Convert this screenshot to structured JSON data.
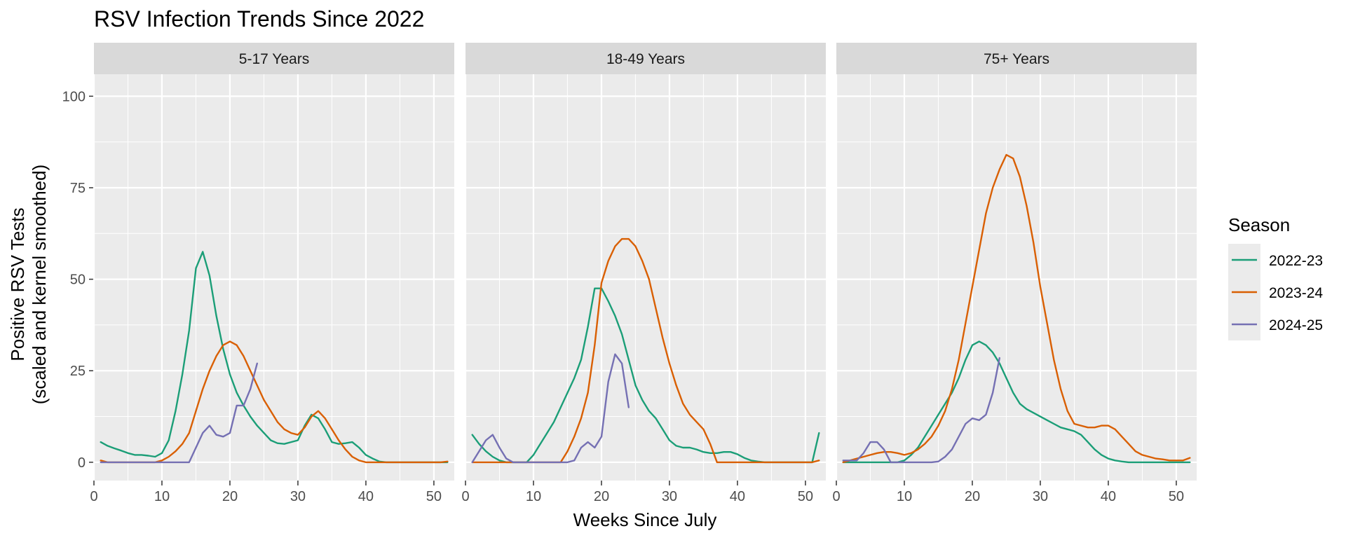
{
  "chart_data": {
    "type": "line",
    "title": "RSV Infection Trends Since 2022",
    "xlabel": "Weeks Since July",
    "ylabel_lines": [
      "Positive RSV Tests",
      "(scaled and kernel smoothed)"
    ],
    "xlim": [
      0,
      53
    ],
    "ylim": [
      -5,
      106
    ],
    "x_ticks": [
      0,
      10,
      20,
      30,
      40,
      50
    ],
    "y_ticks": [
      0,
      25,
      50,
      75,
      100
    ],
    "grid": true,
    "legend": {
      "title": "Season",
      "position": "right",
      "entries": [
        "2022-23",
        "2023-24",
        "2024-25"
      ]
    },
    "series_colors": {
      "2022-23": "#1b9e77",
      "2023-24": "#d95f02",
      "2024-25": "#7570b3"
    },
    "panels": [
      {
        "label": "5-17 Years",
        "series": [
          {
            "name": "2022-23",
            "x": [
              1,
              2,
              3,
              4,
              5,
              6,
              7,
              8,
              9,
              10,
              11,
              12,
              13,
              14,
              15,
              16,
              17,
              18,
              19,
              20,
              21,
              22,
              23,
              24,
              25,
              26,
              27,
              28,
              29,
              30,
              31,
              32,
              33,
              34,
              35,
              36,
              37,
              38,
              39,
              40,
              41,
              42,
              43,
              44,
              45,
              46,
              47,
              48,
              49,
              50,
              51,
              52
            ],
            "y": [
              5.5,
              4.5,
              3.8,
              3.2,
              2.5,
              2,
              2,
              1.8,
              1.5,
              2.5,
              6,
              14,
              24,
              36,
              53,
              57.5,
              51,
              40,
              31,
              24,
              19,
              15.5,
              12.5,
              10,
              8,
              6,
              5.2,
              5,
              5.5,
              6,
              10,
              13,
              12,
              9,
              5.5,
              5,
              5.2,
              5.5,
              4,
              2,
              1,
              0.2,
              0,
              0,
              0,
              0,
              0,
              0,
              0,
              0,
              0,
              0
            ]
          },
          {
            "name": "2023-24",
            "x": [
              1,
              2,
              3,
              4,
              5,
              6,
              7,
              8,
              9,
              10,
              11,
              12,
              13,
              14,
              15,
              16,
              17,
              18,
              19,
              20,
              21,
              22,
              23,
              24,
              25,
              26,
              27,
              28,
              29,
              30,
              31,
              32,
              33,
              34,
              35,
              36,
              37,
              38,
              39,
              40,
              41,
              42,
              43,
              44,
              45,
              46,
              47,
              48,
              49,
              50,
              51,
              52
            ],
            "y": [
              0.5,
              0,
              0,
              0,
              0,
              0,
              0,
              0,
              0,
              0.5,
              1.5,
              3,
              5,
              8,
              14,
              20,
              25,
              29,
              32,
              33,
              32,
              29,
              25,
              21,
              17,
              14,
              11,
              9,
              8,
              7.5,
              9.5,
              12.5,
              14,
              12,
              9,
              6,
              3.5,
              1.5,
              0.5,
              0,
              0,
              0,
              0,
              0,
              0,
              0,
              0,
              0,
              0,
              0,
              0,
              0.2
            ]
          },
          {
            "name": "2024-25",
            "x": [
              1,
              2,
              3,
              4,
              5,
              6,
              7,
              8,
              9,
              10,
              11,
              12,
              13,
              14,
              15,
              16,
              17,
              18,
              19,
              20,
              21,
              22,
              23,
              24
            ],
            "y": [
              0,
              0,
              0,
              0,
              0,
              0,
              0,
              0,
              0,
              0,
              0,
              0,
              0,
              0,
              4,
              8,
              10,
              7.5,
              7,
              8,
              15.5,
              15.5,
              20,
              27
            ]
          }
        ]
      },
      {
        "label": "18-49 Years",
        "series": [
          {
            "name": "2022-23",
            "x": [
              1,
              2,
              3,
              4,
              5,
              6,
              7,
              8,
              9,
              10,
              11,
              12,
              13,
              14,
              15,
              16,
              17,
              18,
              19,
              20,
              21,
              22,
              23,
              24,
              25,
              26,
              27,
              28,
              29,
              30,
              31,
              32,
              33,
              34,
              35,
              36,
              37,
              38,
              39,
              40,
              41,
              42,
              43,
              44,
              45,
              46,
              47,
              48,
              49,
              50,
              51,
              52
            ],
            "y": [
              7.5,
              5,
              3,
              1.5,
              0.5,
              0,
              0,
              0,
              0,
              2,
              5,
              8,
              11,
              15,
              19,
              23,
              28,
              37,
              47.5,
              47.5,
              44,
              40,
              35,
              28,
              21,
              17,
              14,
              12,
              9,
              6,
              4.5,
              4,
              4,
              3.5,
              2.8,
              2.5,
              2.5,
              2.8,
              2.8,
              2.2,
              1.2,
              0.5,
              0.2,
              0,
              0,
              0,
              0,
              0,
              0,
              0,
              0,
              8
            ]
          },
          {
            "name": "2023-24",
            "x": [
              1,
              2,
              3,
              4,
              5,
              6,
              7,
              8,
              9,
              10,
              11,
              12,
              13,
              14,
              15,
              16,
              17,
              18,
              19,
              20,
              21,
              22,
              23,
              24,
              25,
              26,
              27,
              28,
              29,
              30,
              31,
              32,
              33,
              34,
              35,
              36,
              37,
              38,
              39,
              40,
              41,
              42,
              43,
              44,
              45,
              46,
              47,
              48,
              49,
              50,
              51,
              52
            ],
            "y": [
              0,
              0,
              0,
              0,
              0,
              0,
              0,
              0,
              0,
              0,
              0,
              0,
              0,
              0,
              3,
              7,
              12,
              19,
              32,
              49,
              55,
              59,
              61,
              61,
              59,
              55,
              50,
              42,
              34,
              27,
              21,
              16,
              13,
              11,
              9,
              5,
              0,
              0,
              0,
              0,
              0,
              0,
              0,
              0,
              0,
              0,
              0,
              0,
              0,
              0,
              0,
              0.5
            ]
          },
          {
            "name": "2024-25",
            "x": [
              1,
              2,
              3,
              4,
              5,
              6,
              7,
              8,
              9,
              10,
              11,
              12,
              13,
              14,
              15,
              16,
              17,
              18,
              19,
              20,
              21,
              22,
              23,
              24
            ],
            "y": [
              0,
              3,
              6,
              7.5,
              4,
              1,
              0,
              0,
              0,
              0,
              0,
              0,
              0,
              0,
              0,
              0.5,
              4,
              5.5,
              4,
              7,
              22,
              29.5,
              27,
              15
            ]
          }
        ]
      },
      {
        "label": "75+ Years",
        "series": [
          {
            "name": "2022-23",
            "x": [
              1,
              2,
              3,
              4,
              5,
              6,
              7,
              8,
              9,
              10,
              11,
              12,
              13,
              14,
              15,
              16,
              17,
              18,
              19,
              20,
              21,
              22,
              23,
              24,
              25,
              26,
              27,
              28,
              29,
              30,
              31,
              32,
              33,
              34,
              35,
              36,
              37,
              38,
              39,
              40,
              41,
              42,
              43,
              44,
              45,
              46,
              47,
              48,
              49,
              50,
              51,
              52
            ],
            "y": [
              0,
              0,
              0,
              0,
              0,
              0,
              0,
              0,
              0,
              0.5,
              2,
              4,
              7,
              10,
              13,
              16,
              19,
              23,
              28,
              32,
              33,
              32,
              30,
              27,
              23,
              19,
              16,
              14.5,
              13.5,
              12.5,
              11.5,
              10.5,
              9.5,
              9,
              8.5,
              7.5,
              5.5,
              3.5,
              2,
              1,
              0.5,
              0.2,
              0,
              0,
              0,
              0,
              0,
              0,
              0,
              0,
              0,
              0
            ]
          },
          {
            "name": "2023-24",
            "x": [
              1,
              2,
              3,
              4,
              5,
              6,
              7,
              8,
              9,
              10,
              11,
              12,
              13,
              14,
              15,
              16,
              17,
              18,
              19,
              20,
              21,
              22,
              23,
              24,
              25,
              26,
              27,
              28,
              29,
              30,
              31,
              32,
              33,
              34,
              35,
              36,
              37,
              38,
              39,
              40,
              41,
              42,
              43,
              44,
              45,
              46,
              47,
              48,
              49,
              50,
              51,
              52
            ],
            "y": [
              0,
              0.5,
              1,
              1.5,
              2,
              2.5,
              2.8,
              2.8,
              2.5,
              2,
              2.5,
              3.5,
              5,
              7,
              10,
              14,
              20,
              28,
              38,
              48,
              58,
              68,
              75,
              80,
              84,
              83,
              78,
              70,
              60,
              48,
              38,
              28,
              20,
              14,
              10.5,
              10,
              9.5,
              9.5,
              10,
              10,
              9,
              7,
              5,
              3,
              2,
              1.5,
              1,
              0.8,
              0.5,
              0.5,
              0.5,
              1.2
            ]
          },
          {
            "name": "2024-25",
            "x": [
              1,
              2,
              3,
              4,
              5,
              6,
              7,
              8,
              9,
              10,
              11,
              12,
              13,
              14,
              15,
              16,
              17,
              18,
              19,
              20,
              21,
              22,
              23,
              24
            ],
            "y": [
              0.5,
              0.5,
              0.5,
              2.5,
              5.5,
              5.5,
              3.5,
              0,
              0,
              0,
              0,
              0,
              0,
              0,
              0.2,
              1.5,
              3.5,
              7,
              10.5,
              12,
              11.5,
              13,
              19,
              28.5
            ]
          }
        ]
      }
    ]
  }
}
